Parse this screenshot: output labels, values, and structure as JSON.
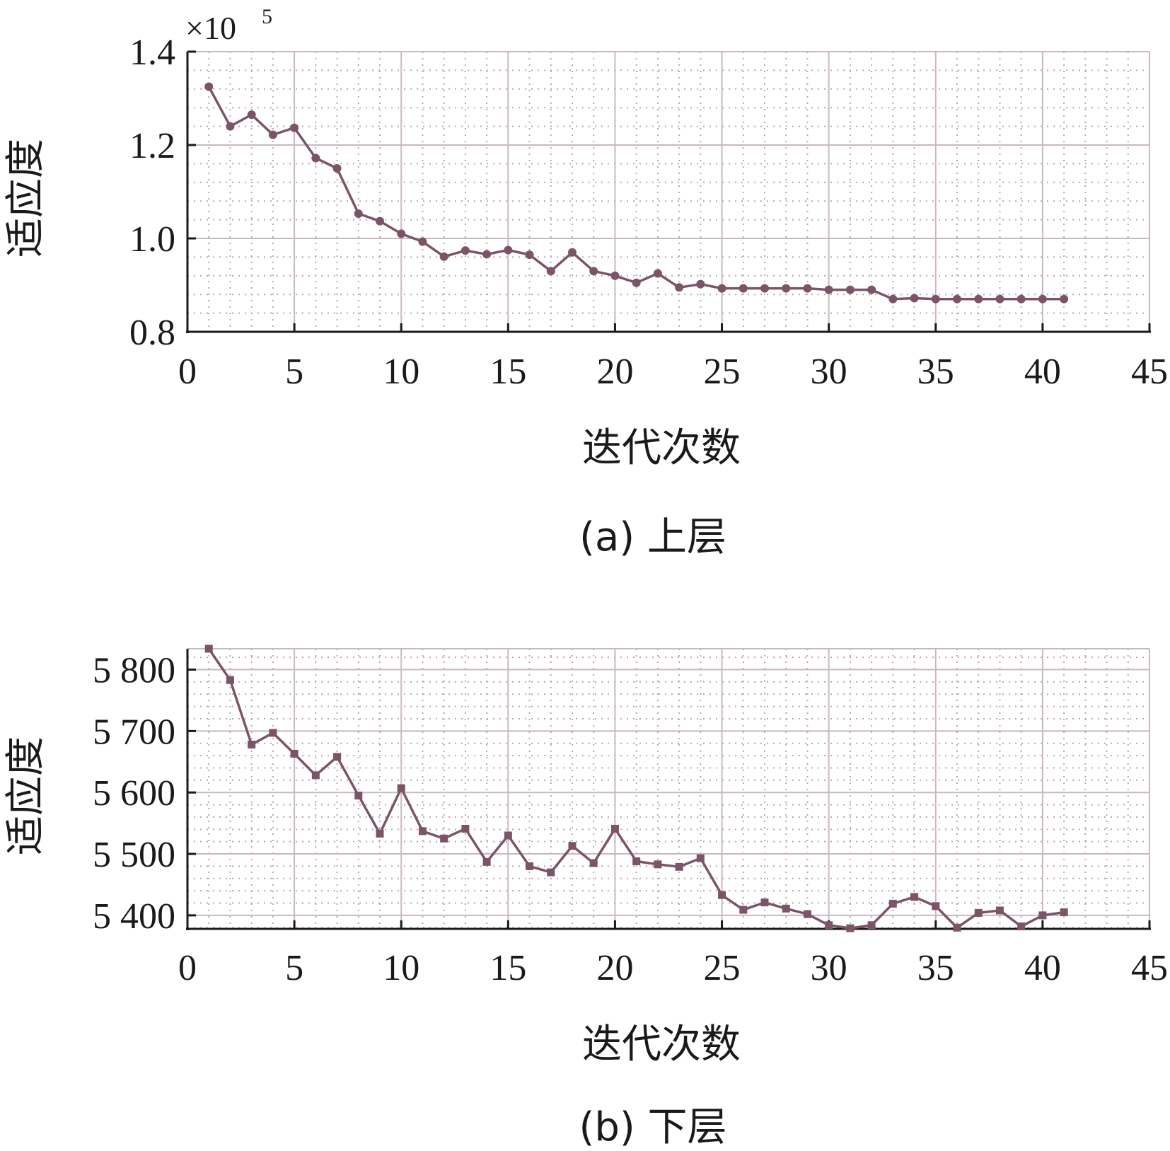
{
  "chart_data": [
    {
      "type": "line",
      "caption": "(a) 上层",
      "xlabel": "迭代次数",
      "ylabel": "适应度",
      "y_scale_label": "×10",
      "y_scale_exponent": "5",
      "xlim": [
        0,
        45
      ],
      "ylim": [
        0.8,
        1.4
      ],
      "x_ticks": [
        0,
        5,
        10,
        15,
        20,
        25,
        30,
        35,
        40,
        45
      ],
      "x_tick_labels": [
        "0",
        "5",
        "10",
        "15",
        "20",
        "25",
        "30",
        "35",
        "40",
        "45"
      ],
      "y_ticks": [
        0.8,
        1.0,
        1.2,
        1.4
      ],
      "y_tick_labels": [
        "0.8",
        "1.0",
        "1.2",
        "1.4"
      ],
      "grid": true,
      "series": [
        {
          "color": "#7b5468",
          "marker": "circle",
          "x": [
            1,
            2,
            3,
            4,
            5,
            6,
            7,
            8,
            9,
            10,
            11,
            12,
            13,
            14,
            15,
            16,
            17,
            18,
            19,
            20,
            21,
            22,
            23,
            24,
            25,
            26,
            27,
            28,
            29,
            30,
            31,
            32,
            33,
            34,
            35,
            36,
            37,
            38,
            39,
            40,
            41
          ],
          "y": [
            1.325,
            1.24,
            1.265,
            1.222,
            1.237,
            1.172,
            1.15,
            1.053,
            1.037,
            1.01,
            0.993,
            0.961,
            0.974,
            0.966,
            0.975,
            0.965,
            0.93,
            0.97,
            0.93,
            0.92,
            0.905,
            0.925,
            0.895,
            0.902,
            0.893,
            0.893,
            0.893,
            0.893,
            0.893,
            0.89,
            0.89,
            0.89,
            0.87,
            0.872,
            0.87,
            0.87,
            0.87,
            0.87,
            0.87,
            0.87,
            0.87
          ]
        }
      ]
    },
    {
      "type": "line",
      "caption": "(b) 下层",
      "xlabel": "迭代次数",
      "ylabel": "适应度",
      "xlim": [
        0,
        45
      ],
      "ylim": [
        5378,
        5834
      ],
      "x_ticks": [
        0,
        5,
        10,
        15,
        20,
        25,
        30,
        35,
        40,
        45
      ],
      "x_tick_labels": [
        "0",
        "5",
        "10",
        "15",
        "20",
        "25",
        "30",
        "35",
        "40",
        "45"
      ],
      "y_ticks": [
        5400,
        5500,
        5600,
        5700,
        5800
      ],
      "y_tick_labels": [
        "5 400",
        "5 500",
        "5 600",
        "5 700",
        "5 800"
      ],
      "grid": true,
      "series": [
        {
          "color": "#7b5468",
          "marker": "square",
          "x": [
            1,
            2,
            3,
            4,
            5,
            6,
            7,
            8,
            9,
            10,
            11,
            12,
            13,
            14,
            15,
            16,
            17,
            18,
            19,
            20,
            21,
            22,
            23,
            24,
            25,
            26,
            27,
            28,
            29,
            30,
            31,
            32,
            33,
            34,
            35,
            36,
            37,
            38,
            39,
            40,
            41
          ],
          "y": [
            5834,
            5783,
            5678,
            5697,
            5663,
            5628,
            5658,
            5595,
            5533,
            5607,
            5537,
            5525,
            5541,
            5487,
            5530,
            5480,
            5470,
            5513,
            5485,
            5541,
            5488,
            5483,
            5479,
            5493,
            5433,
            5409,
            5421,
            5411,
            5402,
            5384,
            5379,
            5384,
            5419,
            5430,
            5415,
            5380,
            5404,
            5408,
            5382,
            5400,
            5405
          ]
        }
      ]
    }
  ]
}
